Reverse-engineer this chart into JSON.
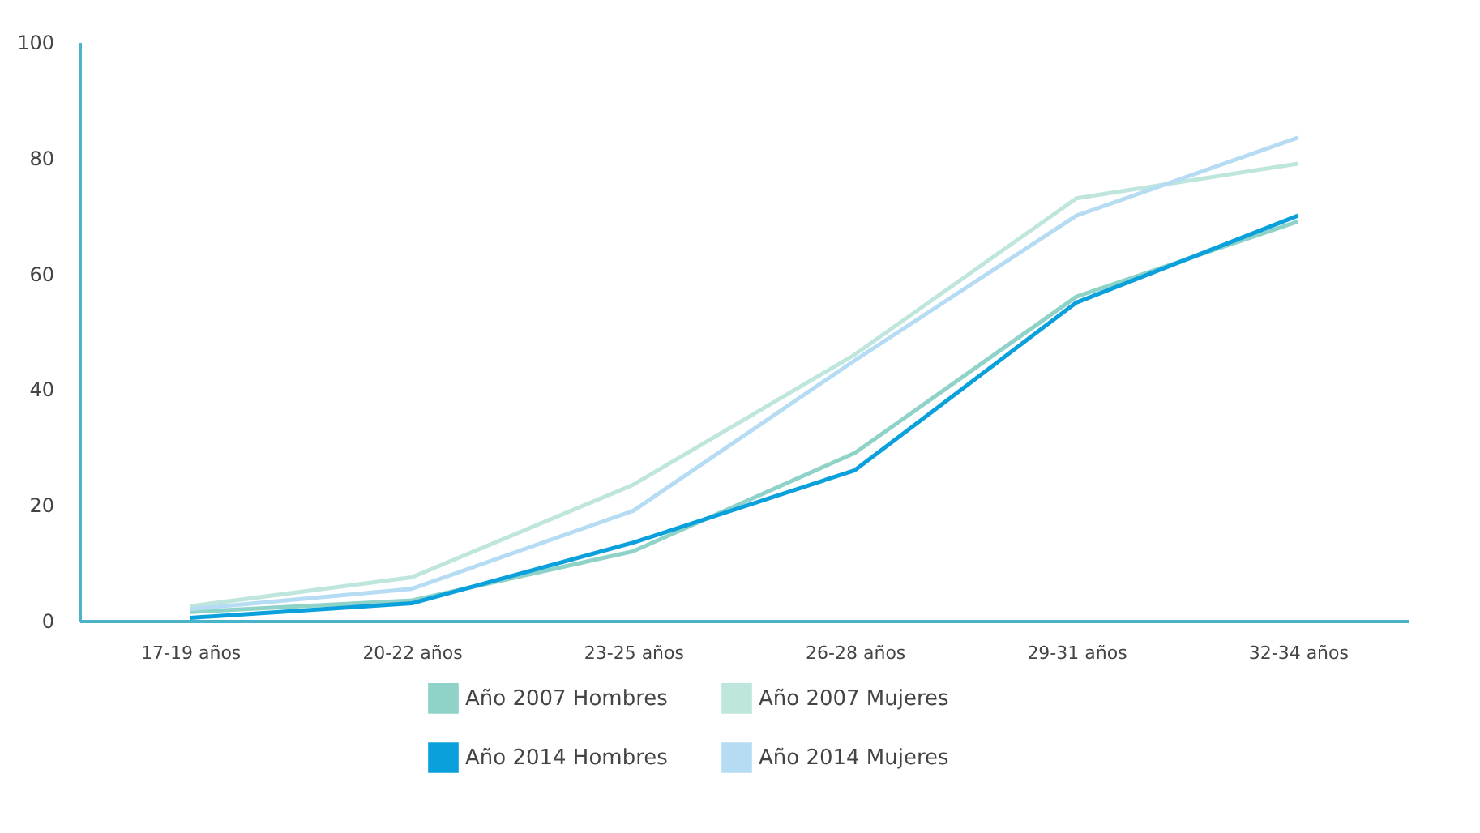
{
  "chart_data": {
    "type": "line",
    "categories": [
      "17-19 años",
      "20-22 años",
      "23-25 años",
      "26-28 años",
      "29-31 años",
      "32-34 años"
    ],
    "series": [
      {
        "name": "Año 2007 Hombres",
        "color": "#8fd3c8",
        "values": [
          1.5,
          3.5,
          12,
          29,
          56,
          69
        ]
      },
      {
        "name": "Año 2007 Mujeres",
        "color": "#bfe6dd",
        "values": [
          2.5,
          7.5,
          23.5,
          46,
          73,
          79
        ]
      },
      {
        "name": "Año 2014 Hombres",
        "color": "#0aa0dc",
        "values": [
          0.5,
          3,
          13.5,
          26,
          55,
          70
        ]
      },
      {
        "name": "Año 2014 Mujeres",
        "color": "#b5dcf3",
        "values": [
          2,
          5.5,
          19,
          45,
          70,
          83.5
        ]
      }
    ],
    "ylim": [
      0,
      100
    ],
    "yticks": [
      0,
      20,
      40,
      60,
      80,
      100
    ],
    "grid": false,
    "legend": "bottom",
    "marker": "none",
    "line_style": "solid"
  }
}
